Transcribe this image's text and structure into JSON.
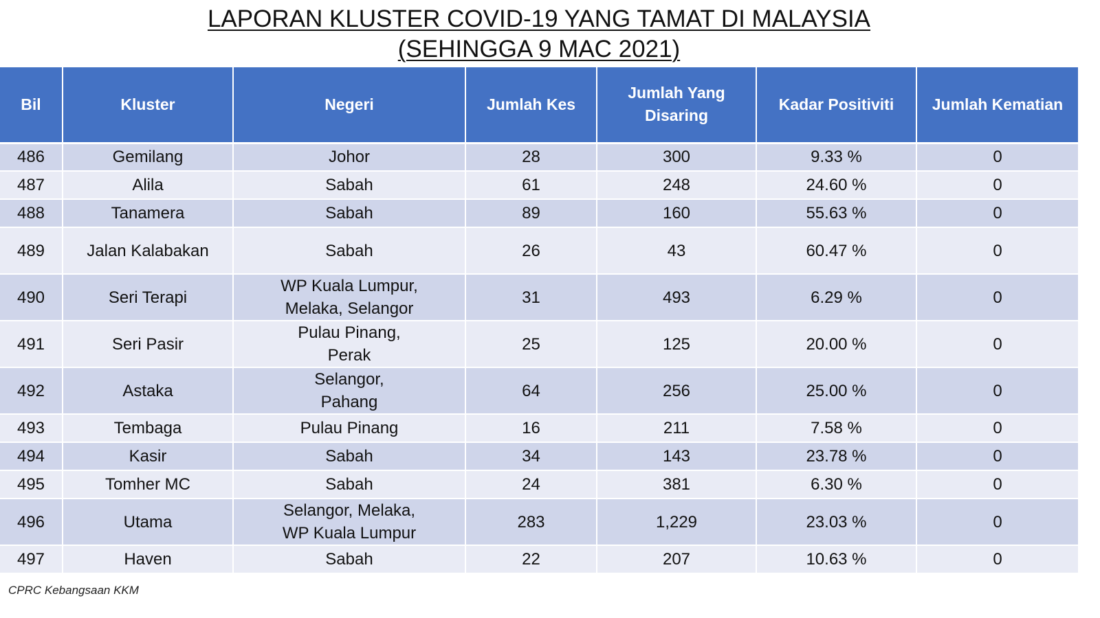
{
  "title": {
    "line1": "LAPORAN KLUSTER COVID-19 YANG TAMAT DI MALAYSIA",
    "line2": "(SEHINGGA 9 MAC 2021)"
  },
  "table": {
    "headers": {
      "bil": "Bil",
      "kluster": "Kluster",
      "negeri": "Negeri",
      "jumlah_kes": "Jumlah Kes",
      "jumlah_disaring_1": "Jumlah Yang",
      "jumlah_disaring_2": "Disaring",
      "kadar_positiviti": "Kadar Positiviti",
      "jumlah_kematian": "Jumlah Kematian"
    },
    "rows": [
      {
        "bil": "486",
        "kluster": "Gemilang",
        "negeri": [
          "Johor"
        ],
        "kes": "28",
        "disaring": "300",
        "positiviti": "9.33 %",
        "kematian": "0"
      },
      {
        "bil": "487",
        "kluster": "Alila",
        "negeri": [
          "Sabah"
        ],
        "kes": "61",
        "disaring": "248",
        "positiviti": "24.60 %",
        "kematian": "0"
      },
      {
        "bil": "488",
        "kluster": "Tanamera",
        "negeri": [
          "Sabah"
        ],
        "kes": "89",
        "disaring": "160",
        "positiviti": "55.63 %",
        "kematian": "0"
      },
      {
        "bil": "489",
        "kluster": "Jalan Kalabakan",
        "negeri": [
          "Sabah"
        ],
        "kes": "26",
        "disaring": "43",
        "positiviti": "60.47 %",
        "kematian": "0"
      },
      {
        "bil": "490",
        "kluster": "Seri Terapi",
        "negeri": [
          "WP Kuala Lumpur,",
          "Melaka, Selangor"
        ],
        "kes": "31",
        "disaring": "493",
        "positiviti": "6.29 %",
        "kematian": "0"
      },
      {
        "bil": "491",
        "kluster": "Seri Pasir",
        "negeri": [
          "Pulau Pinang,",
          "Perak"
        ],
        "kes": "25",
        "disaring": "125",
        "positiviti": "20.00 %",
        "kematian": "0"
      },
      {
        "bil": "492",
        "kluster": "Astaka",
        "negeri": [
          "Selangor,",
          "Pahang"
        ],
        "kes": "64",
        "disaring": "256",
        "positiviti": "25.00 %",
        "kematian": "0"
      },
      {
        "bil": "493",
        "kluster": "Tembaga",
        "negeri": [
          "Pulau Pinang"
        ],
        "kes": "16",
        "disaring": "211",
        "positiviti": "7.58 %",
        "kematian": "0"
      },
      {
        "bil": "494",
        "kluster": "Kasir",
        "negeri": [
          "Sabah"
        ],
        "kes": "34",
        "disaring": "143",
        "positiviti": "23.78 %",
        "kematian": "0"
      },
      {
        "bil": "495",
        "kluster": "Tomher MC",
        "negeri": [
          "Sabah"
        ],
        "kes": "24",
        "disaring": "381",
        "positiviti": "6.30 %",
        "kematian": "0"
      },
      {
        "bil": "496",
        "kluster": "Utama",
        "negeri": [
          "Selangor, Melaka,",
          "WP Kuala Lumpur"
        ],
        "kes": "283",
        "disaring": "1,229",
        "positiviti": "23.03 %",
        "kematian": "0"
      },
      {
        "bil": "497",
        "kluster": "Haven",
        "negeri": [
          "Sabah"
        ],
        "kes": "22",
        "disaring": "207",
        "positiviti": "10.63 %",
        "kematian": "0"
      }
    ]
  },
  "source": "CPRC Kebangsaan KKM",
  "colors": {
    "header_bg": "#4472c4",
    "row_odd": "#cfd5ea",
    "row_even": "#e9ebf5"
  }
}
